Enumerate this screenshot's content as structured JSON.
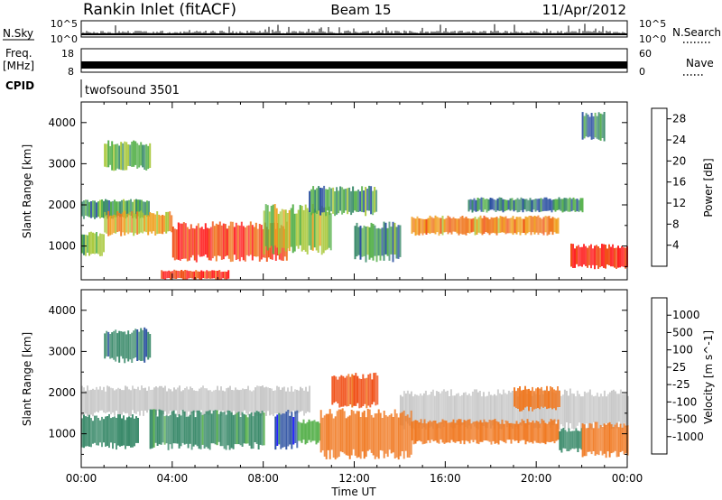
{
  "header": {
    "station": "Rankin Inlet (fitACF)",
    "beam": "Beam 15",
    "date": "11/Apr/2012"
  },
  "status_panels": {
    "nsky_label": "N.Sky",
    "nsky_ticks": [
      "10^5",
      "10^0"
    ],
    "nsearch_label": "N.Search",
    "nsearch_ticks": [
      "10^5",
      "10^0"
    ],
    "freq_label_line1": "Freq.",
    "freq_label_line2": "[MHz]",
    "freq_ticks": [
      "18",
      "8"
    ],
    "nave_label": "Nave",
    "nave_ticks": [
      "60",
      "0"
    ],
    "cpid_label": "CPID",
    "cpid_value": "twofsound 3501"
  },
  "colors": {
    "power_scale": [
      "#1a1aff",
      "#2a4fa0",
      "#3a8a6a",
      "#55b04a",
      "#a8c83a",
      "#f0a020",
      "#f07820",
      "#f04a10",
      "#ff1a1a"
    ],
    "velocity_scale": [
      "#ff1a1a",
      "#f04a10",
      "#f07820",
      "#f0a020",
      "#c8c8c8",
      "#55b04a",
      "#3a8a6a",
      "#2a4fa0",
      "#1a1aff"
    ],
    "ground_scatter": "#c8c8c8"
  },
  "chart_data": [
    {
      "type": "heatmap",
      "panel": "power",
      "xlabel": "",
      "ylabel": "Slant Range [km]",
      "xlim": [
        "00:00",
        "24:00"
      ],
      "ylim": [
        180,
        4500
      ],
      "y_ticks": [
        1000,
        2000,
        3000,
        4000
      ],
      "colorbar_label": "Power [dB]",
      "colorbar_ticks": [
        4,
        8,
        12,
        16,
        20,
        24,
        28
      ],
      "colorbar_range": [
        0,
        30
      ],
      "regions": [
        {
          "t": [
            "00:00",
            "01:00"
          ],
          "range": [
            800,
            1300
          ],
          "value": 12
        },
        {
          "t": [
            "00:00",
            "03:00"
          ],
          "range": [
            1700,
            2100
          ],
          "value": 10
        },
        {
          "t": [
            "01:00",
            "03:00"
          ],
          "range": [
            2900,
            3500
          ],
          "value": 12
        },
        {
          "t": [
            "01:00",
            "04:00"
          ],
          "range": [
            1300,
            1800
          ],
          "value": 18
        },
        {
          "t": [
            "03:30",
            "06:30"
          ],
          "range": [
            200,
            400
          ],
          "value": 26
        },
        {
          "t": [
            "04:00",
            "09:00"
          ],
          "range": [
            700,
            1500
          ],
          "value": 26
        },
        {
          "t": [
            "08:00",
            "11:00"
          ],
          "range": [
            900,
            1900
          ],
          "value": 14
        },
        {
          "t": [
            "10:00",
            "13:00"
          ],
          "range": [
            1800,
            2400
          ],
          "value": 10
        },
        {
          "t": [
            "12:00",
            "14:00"
          ],
          "range": [
            700,
            1500
          ],
          "value": 10
        },
        {
          "t": [
            "14:30",
            "21:00"
          ],
          "range": [
            1300,
            1700
          ],
          "value": 20
        },
        {
          "t": [
            "17:00",
            "22:00"
          ],
          "range": [
            1850,
            2150
          ],
          "value": 8
        },
        {
          "t": [
            "21:30",
            "24:00"
          ],
          "range": [
            500,
            1000
          ],
          "value": 28
        },
        {
          "t": [
            "22:00",
            "23:00"
          ],
          "range": [
            3600,
            4200
          ],
          "value": 8
        }
      ]
    },
    {
      "type": "heatmap",
      "panel": "velocity",
      "xlabel": "Time UT",
      "ylabel": "Slant Range [km]",
      "x_ticks": [
        "00:00",
        "04:00",
        "08:00",
        "12:00",
        "16:00",
        "20:00",
        "00:00"
      ],
      "ylim": [
        180,
        4500
      ],
      "y_ticks": [
        1000,
        2000,
        3000,
        4000
      ],
      "colorbar_label": "Velocity [m s^-1]",
      "colorbar_ticks": [
        1000,
        500,
        100,
        25,
        -25,
        -100,
        -500,
        -1000
      ],
      "regions": [
        {
          "t": [
            "00:00",
            "10:00"
          ],
          "range": [
            1500,
            2100
          ],
          "value": 0,
          "ground_scatter": true
        },
        {
          "t": [
            "14:00",
            "24:00"
          ],
          "range": [
            1200,
            2000
          ],
          "value": 0,
          "ground_scatter": true
        },
        {
          "t": [
            "00:00",
            "02:30"
          ],
          "range": [
            700,
            1400
          ],
          "value": 300
        },
        {
          "t": [
            "01:00",
            "03:00"
          ],
          "range": [
            2800,
            3500
          ],
          "value": 400
        },
        {
          "t": [
            "03:00",
            "08:00"
          ],
          "range": [
            700,
            1500
          ],
          "value": 150
        },
        {
          "t": [
            "08:30",
            "09:30"
          ],
          "range": [
            700,
            1500
          ],
          "value": 800
        },
        {
          "t": [
            "09:30",
            "10:30"
          ],
          "range": [
            800,
            1300
          ],
          "value": 60
        },
        {
          "t": [
            "10:30",
            "14:30"
          ],
          "range": [
            500,
            1500
          ],
          "value": -300
        },
        {
          "t": [
            "11:00",
            "13:00"
          ],
          "range": [
            1700,
            2400
          ],
          "value": -700
        },
        {
          "t": [
            "14:30",
            "21:00"
          ],
          "range": [
            800,
            1300
          ],
          "value": -300
        },
        {
          "t": [
            "19:00",
            "21:00"
          ],
          "range": [
            1600,
            2100
          ],
          "value": -200
        },
        {
          "t": [
            "21:00",
            "22:00"
          ],
          "range": [
            600,
            1100
          ],
          "value": 300
        },
        {
          "t": [
            "22:00",
            "24:00"
          ],
          "range": [
            500,
            1200
          ],
          "value": -300
        }
      ]
    }
  ]
}
